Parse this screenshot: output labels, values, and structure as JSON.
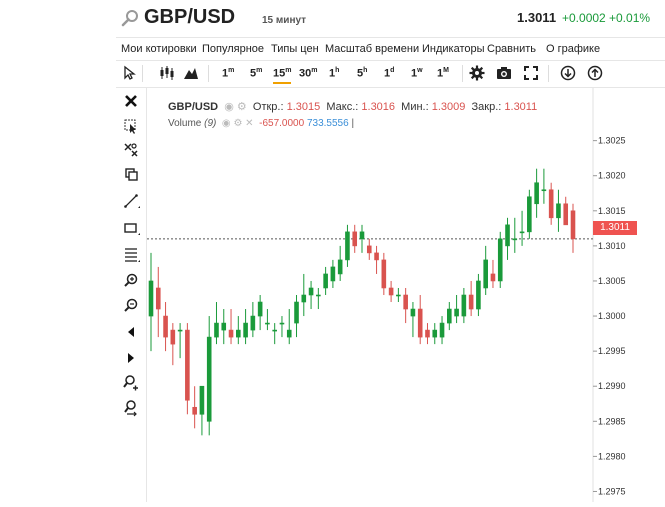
{
  "header": {
    "symbol": "GBP/USD",
    "interval": "15 минут",
    "last_price": "1.3011",
    "change": "+0.0002",
    "change_pct": "+0.01%"
  },
  "menu": {
    "items": [
      "Мои котировки",
      "Популярное",
      "Типы цен",
      "Масштаб времени",
      "Индикаторы",
      "Сравнить",
      "О графике"
    ]
  },
  "toolbar": {
    "timeframes": [
      {
        "label": "1",
        "sup": "m"
      },
      {
        "label": "5",
        "sup": "m"
      },
      {
        "label": "15",
        "sup": "m"
      },
      {
        "label": "30",
        "sup": "m"
      },
      {
        "label": "1",
        "sup": "h"
      },
      {
        "label": "5",
        "sup": "h"
      },
      {
        "label": "1",
        "sup": "d"
      },
      {
        "label": "1",
        "sup": "w"
      },
      {
        "label": "1",
        "sup": "M"
      }
    ],
    "active_index": 2
  },
  "legend": {
    "symbol": "GBP/USD",
    "open_label": "Откр.:",
    "open": "1.3015",
    "high_label": "Макс.:",
    "high": "1.3016",
    "low_label": "Мин.:",
    "low": "1.3009",
    "close_label": "Закр.:",
    "close": "1.3011",
    "volume_label": "Volume",
    "volume_param": "(9)",
    "volume_value": "-657.0000",
    "volume_ma": "733.5556"
  },
  "colors": {
    "up": "#1a9a3a",
    "down": "#d9534f",
    "price_label": "#ef5350"
  },
  "icons": [
    "search-icon",
    "cursor-icon",
    "chart-type-candles-icon",
    "chart-type-area-icon",
    "settings-icon",
    "camera-icon",
    "fullscreen-icon",
    "download-icon",
    "upload-icon"
  ],
  "chart_data": {
    "type": "candlestick",
    "ylim": [
      1.29735,
      1.30325
    ],
    "yticks": [
      "1.3025",
      "1.3020",
      "1.3015",
      "1.3010",
      "1.3005",
      "1.3000",
      "1.2995",
      "1.2990",
      "1.2985",
      "1.2980",
      "1.2975"
    ],
    "last_price": 1.3011,
    "last_price_label": "1.3011",
    "candles": [
      {
        "o": 1.3,
        "h": 1.3009,
        "l": 1.2995,
        "c": 1.3005
      },
      {
        "o": 1.3004,
        "h": 1.3007,
        "l": 1.2997,
        "c": 1.3001
      },
      {
        "o": 1.3,
        "h": 1.3002,
        "l": 1.2995,
        "c": 1.2997
      },
      {
        "o": 1.2998,
        "h": 1.2999,
        "l": 1.2993,
        "c": 1.2996
      },
      {
        "o": 1.2998,
        "h": 1.2999,
        "l": 1.2994,
        "c": 1.2998
      },
      {
        "o": 1.2998,
        "h": 1.2999,
        "l": 1.2986,
        "c": 1.2988
      },
      {
        "o": 1.2987,
        "h": 1.299,
        "l": 1.2984,
        "c": 1.2986
      },
      {
        "o": 1.2986,
        "h": 1.299,
        "l": 1.2983,
        "c": 1.299
      },
      {
        "o": 1.2985,
        "h": 1.3,
        "l": 1.2983,
        "c": 1.2997
      },
      {
        "o": 1.2997,
        "h": 1.3002,
        "l": 1.2996,
        "c": 1.2999
      },
      {
        "o": 1.2998,
        "h": 1.3001,
        "l": 1.2996,
        "c": 1.2999
      },
      {
        "o": 1.2998,
        "h": 1.3001,
        "l": 1.2996,
        "c": 1.2997
      },
      {
        "o": 1.2997,
        "h": 1.3,
        "l": 1.2996,
        "c": 1.2998
      },
      {
        "o": 1.2997,
        "h": 1.3001,
        "l": 1.2996,
        "c": 1.2999
      },
      {
        "o": 1.2998,
        "h": 1.3002,
        "l": 1.2997,
        "c": 1.3
      },
      {
        "o": 1.3,
        "h": 1.3003,
        "l": 1.2998,
        "c": 1.3002
      },
      {
        "o": 1.2999,
        "h": 1.3001,
        "l": 1.2998,
        "c": 1.2999
      },
      {
        "o": 1.2998,
        "h": 1.2999,
        "l": 1.2996,
        "c": 1.2998
      },
      {
        "o": 1.2999,
        "h": 1.3,
        "l": 1.2997,
        "c": 1.2999
      },
      {
        "o": 1.2997,
        "h": 1.3001,
        "l": 1.2996,
        "c": 1.2998
      },
      {
        "o": 1.2999,
        "h": 1.3003,
        "l": 1.2997,
        "c": 1.3002
      },
      {
        "o": 1.3002,
        "h": 1.3006,
        "l": 1.3,
        "c": 1.3003
      },
      {
        "o": 1.3003,
        "h": 1.3005,
        "l": 1.3001,
        "c": 1.3004
      },
      {
        "o": 1.3003,
        "h": 1.3004,
        "l": 1.3001,
        "c": 1.3003
      },
      {
        "o": 1.3004,
        "h": 1.3007,
        "l": 1.3003,
        "c": 1.3006
      },
      {
        "o": 1.3005,
        "h": 1.3008,
        "l": 1.3004,
        "c": 1.3007
      },
      {
        "o": 1.3006,
        "h": 1.301,
        "l": 1.3005,
        "c": 1.3008
      },
      {
        "o": 1.3008,
        "h": 1.3013,
        "l": 1.3007,
        "c": 1.3012
      },
      {
        "o": 1.3012,
        "h": 1.3013,
        "l": 1.3009,
        "c": 1.301
      },
      {
        "o": 1.3011,
        "h": 1.3013,
        "l": 1.3009,
        "c": 1.3012
      },
      {
        "o": 1.301,
        "h": 1.3011,
        "l": 1.3008,
        "c": 1.3009
      },
      {
        "o": 1.3009,
        "h": 1.301,
        "l": 1.3006,
        "c": 1.3008
      },
      {
        "o": 1.3008,
        "h": 1.3009,
        "l": 1.3003,
        "c": 1.3004
      },
      {
        "o": 1.3004,
        "h": 1.3005,
        "l": 1.3002,
        "c": 1.3003
      },
      {
        "o": 1.3003,
        "h": 1.3004,
        "l": 1.3002,
        "c": 1.3003
      },
      {
        "o": 1.3003,
        "h": 1.3004,
        "l": 1.2999,
        "c": 1.3001
      },
      {
        "o": 1.3,
        "h": 1.3002,
        "l": 1.2997,
        "c": 1.3001
      },
      {
        "o": 1.3001,
        "h": 1.3003,
        "l": 1.2996,
        "c": 1.2997
      },
      {
        "o": 1.2998,
        "h": 1.2999,
        "l": 1.2996,
        "c": 1.2997
      },
      {
        "o": 1.2997,
        "h": 1.2999,
        "l": 1.2996,
        "c": 1.2998
      },
      {
        "o": 1.2997,
        "h": 1.3,
        "l": 1.2996,
        "c": 1.2999
      },
      {
        "o": 1.2999,
        "h": 1.3002,
        "l": 1.2998,
        "c": 1.3001
      },
      {
        "o": 1.3,
        "h": 1.3003,
        "l": 1.2999,
        "c": 1.3001
      },
      {
        "o": 1.3,
        "h": 1.3004,
        "l": 1.2999,
        "c": 1.3003
      },
      {
        "o": 1.3003,
        "h": 1.3005,
        "l": 1.3,
        "c": 1.3001
      },
      {
        "o": 1.3001,
        "h": 1.3006,
        "l": 1.3,
        "c": 1.3005
      },
      {
        "o": 1.3004,
        "h": 1.301,
        "l": 1.3003,
        "c": 1.3008
      },
      {
        "o": 1.3006,
        "h": 1.3008,
        "l": 1.3004,
        "c": 1.3005
      },
      {
        "o": 1.3005,
        "h": 1.3012,
        "l": 1.3004,
        "c": 1.3011
      },
      {
        "o": 1.301,
        "h": 1.3014,
        "l": 1.3008,
        "c": 1.3013
      },
      {
        "o": 1.3011,
        "h": 1.3014,
        "l": 1.3009,
        "c": 1.3011
      },
      {
        "o": 1.3012,
        "h": 1.3015,
        "l": 1.301,
        "c": 1.3012
      },
      {
        "o": 1.3012,
        "h": 1.3018,
        "l": 1.3011,
        "c": 1.3017
      },
      {
        "o": 1.3016,
        "h": 1.3021,
        "l": 1.3014,
        "c": 1.3019
      },
      {
        "o": 1.3018,
        "h": 1.3021,
        "l": 1.3016,
        "c": 1.3018
      },
      {
        "o": 1.3018,
        "h": 1.3019,
        "l": 1.3013,
        "c": 1.3014
      },
      {
        "o": 1.3014,
        "h": 1.3018,
        "l": 1.3012,
        "c": 1.3016
      },
      {
        "o": 1.3016,
        "h": 1.3017,
        "l": 1.3013,
        "c": 1.3013
      },
      {
        "o": 1.3015,
        "h": 1.3016,
        "l": 1.3009,
        "c": 1.3011
      }
    ]
  }
}
